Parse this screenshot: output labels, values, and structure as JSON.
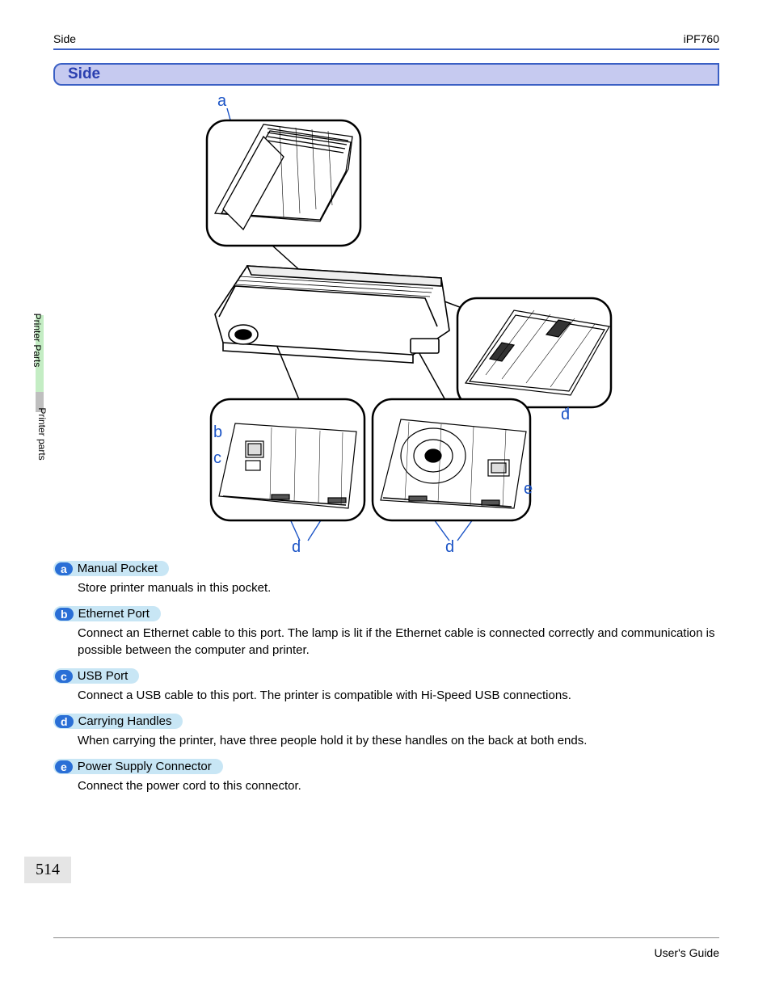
{
  "header": {
    "left": "Side",
    "right": "iPF760"
  },
  "section_title": "Side",
  "sidebar": {
    "label1": "Printer Parts",
    "label2": "Printer parts"
  },
  "callouts": {
    "a": "a",
    "b": "b",
    "c": "c",
    "d1": "d",
    "d2": "d",
    "d3": "d",
    "e": "e"
  },
  "definitions": [
    {
      "letter": "a",
      "title": "Manual Pocket",
      "body": "Store printer manuals in this pocket."
    },
    {
      "letter": "b",
      "title": "Ethernet Port",
      "body": "Connect an Ethernet cable to this port. The lamp is lit if the Ethernet cable is connected correctly and communication is possible between the computer and printer."
    },
    {
      "letter": "c",
      "title": "USB Port",
      "body": "Connect a USB cable to this port. The printer is compatible with Hi-Speed USB connections."
    },
    {
      "letter": "d",
      "title": "Carrying Handles",
      "body": "When carrying the printer, have three people hold it by these handles on the back at both ends."
    },
    {
      "letter": "e",
      "title": "Power Supply Connector",
      "body": "Connect the power cord to this connector."
    }
  ],
  "page_number": "514",
  "footer": "User's Guide",
  "style": {
    "accent": "#3a5fc4",
    "callout_color": "#1a53c6",
    "pill_bg": "#c8e6f5",
    "letter_bg": "#2a6fd6",
    "section_bg": "#c6caf0"
  }
}
